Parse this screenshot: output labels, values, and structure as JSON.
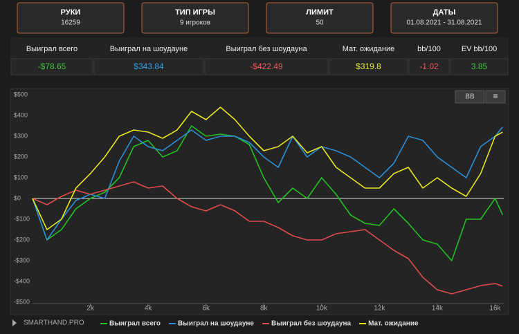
{
  "cards": [
    {
      "title": "РУКИ",
      "value": "16259"
    },
    {
      "title": "ТИП ИГРЫ",
      "value": "9 игроков"
    },
    {
      "title": "ЛИМИТ",
      "value": "50"
    },
    {
      "title": "ДАТЫ",
      "value": "01.08.2021 - 31.08.2021"
    }
  ],
  "stats": {
    "headers": [
      "Выиграл всего",
      "Выиграл на шоудауне",
      "Выиграл без шоудауна",
      "Мат. ожидание",
      "bb/100",
      "EV bb/100"
    ],
    "values": [
      "-$78.65",
      "$343.84",
      "-$422.49",
      "$319.8",
      "-1.02",
      "3.85"
    ],
    "colors": [
      "#3ec23e",
      "#2fa0e8",
      "#f05a5a",
      "#e8e82a",
      "#f05a5a",
      "#3ec23e"
    ]
  },
  "buttons": [
    "BB",
    "≡"
  ],
  "watermark": "SMARTHAND.PRO",
  "chart_data": {
    "type": "line",
    "x": [
      0,
      500,
      1000,
      1500,
      2000,
      2500,
      3000,
      3500,
      4000,
      4500,
      5000,
      5500,
      6000,
      6500,
      7000,
      7500,
      8000,
      8500,
      9000,
      9500,
      10000,
      10500,
      11000,
      11500,
      12000,
      12500,
      13000,
      13500,
      14000,
      14500,
      15000,
      15500,
      16000,
      16259
    ],
    "series": [
      {
        "name": "Выиграл всего",
        "color": "#22c022",
        "values": [
          0,
          -200,
          -150,
          -50,
          0,
          30,
          100,
          250,
          280,
          200,
          230,
          350,
          300,
          310,
          300,
          260,
          100,
          -20,
          50,
          0,
          100,
          20,
          -80,
          -120,
          -130,
          -50,
          -120,
          -200,
          -220,
          -300,
          -100,
          -100,
          0,
          -78.65
        ]
      },
      {
        "name": "Выиграл на шоудауне",
        "color": "#2a8fd6",
        "values": [
          0,
          -200,
          -100,
          -10,
          20,
          0,
          180,
          300,
          250,
          230,
          280,
          330,
          280,
          300,
          300,
          270,
          200,
          150,
          300,
          200,
          250,
          230,
          200,
          150,
          100,
          170,
          300,
          280,
          200,
          150,
          100,
          250,
          300,
          343.84
        ]
      },
      {
        "name": "Выиграл без шоудауна",
        "color": "#e04b4b",
        "values": [
          0,
          -30,
          10,
          40,
          20,
          40,
          60,
          80,
          50,
          60,
          0,
          -40,
          -60,
          -30,
          -60,
          -110,
          -110,
          -140,
          -180,
          -200,
          -200,
          -170,
          -160,
          -150,
          -200,
          -250,
          -290,
          -380,
          -440,
          -460,
          -440,
          -420,
          -410,
          -422.49
        ]
      },
      {
        "name": "Мат. ожидание",
        "color": "#e6e620",
        "values": [
          0,
          -150,
          -100,
          50,
          120,
          200,
          300,
          330,
          320,
          290,
          330,
          420,
          380,
          440,
          380,
          300,
          230,
          250,
          300,
          220,
          250,
          150,
          100,
          50,
          50,
          120,
          150,
          50,
          100,
          50,
          10,
          120,
          300,
          319.8
        ]
      }
    ],
    "xlim": [
      0,
      16300
    ],
    "xticks": [
      {
        "value": 2000,
        "label": "2k"
      },
      {
        "value": 4000,
        "label": "4k"
      },
      {
        "value": 6000,
        "label": "6k"
      },
      {
        "value": 8000,
        "label": "8k"
      },
      {
        "value": 10000,
        "label": "10k"
      },
      {
        "value": 12000,
        "label": "12k"
      },
      {
        "value": 14000,
        "label": "14k"
      },
      {
        "value": 16000,
        "label": "16k"
      }
    ],
    "ylim": [
      -500,
      500
    ],
    "yticks": [
      {
        "value": 500,
        "label": "$500"
      },
      {
        "value": 400,
        "label": "$400"
      },
      {
        "value": 300,
        "label": "$300"
      },
      {
        "value": 200,
        "label": "$200"
      },
      {
        "value": 100,
        "label": "$100"
      },
      {
        "value": 0,
        "label": "$0"
      },
      {
        "value": -100,
        "label": "-$100"
      },
      {
        "value": -200,
        "label": "-$200"
      },
      {
        "value": -300,
        "label": "-$300"
      },
      {
        "value": -400,
        "label": "-$400"
      },
      {
        "value": -500,
        "label": "-$500"
      }
    ],
    "zero_line": true,
    "legend": "bottom"
  }
}
